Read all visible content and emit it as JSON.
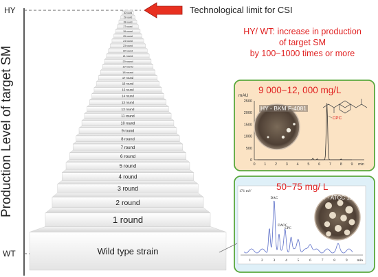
{
  "axis": {
    "ylabel": "Production Level of target SM",
    "top_tick": "HY",
    "bottom_tick": "WT"
  },
  "limit_note": "Technological limit for CSI",
  "increase_note": {
    "line1": "HY/ WT: increase in production",
    "line2": "of target SM",
    "line3": "by 100−1000 times or more"
  },
  "steps": [
    "Wild type strain",
    "1 round",
    "2 round",
    "3 round",
    "4 round",
    "5 round",
    "6 round",
    "7 round",
    "8 round",
    "9 round",
    "10 round",
    "11 round",
    "12 round",
    "13 round",
    "14 round",
    "15 round",
    "16 round",
    "17 round",
    "18 round",
    "19 round",
    "20 round",
    "21 round",
    "22 round",
    "23 round",
    "24 round",
    "25 round",
    "26 round",
    "27 round",
    "28 round",
    "29 round",
    "30 round"
  ],
  "hy_panel": {
    "yield": "9 000−12, 000 mg/L",
    "strain": "HY - BKM F-4081",
    "unit": "mAU",
    "peak_label": "CPC",
    "y_ticks": [
      "2500",
      "2000",
      "1500",
      "1000",
      "500",
      "0"
    ],
    "x_ticks": [
      "0",
      "1",
      "2",
      "3",
      "4",
      "5",
      "6",
      "7",
      "8",
      "9"
    ],
    "x_unit": "min"
  },
  "wt_panel": {
    "yield": "50−75 mg/ L",
    "strain": "WT - ATCC 11500",
    "signal": "171 mV",
    "peaks": [
      "DAC",
      "DAOC",
      "CPC"
    ],
    "x_ticks": [
      "1",
      "2",
      "3",
      "4",
      "5",
      "6",
      "7",
      "8",
      "9"
    ],
    "x_unit": "min"
  },
  "colors": {
    "red": "#e02020",
    "panel_border": "#5aa83c",
    "hy_fill": "#fbe3c4",
    "wt_fill": "#dff0f8",
    "trace": "#5b6ec8",
    "arrow_fill": "#e83020",
    "dish": "#4a3a30"
  }
}
